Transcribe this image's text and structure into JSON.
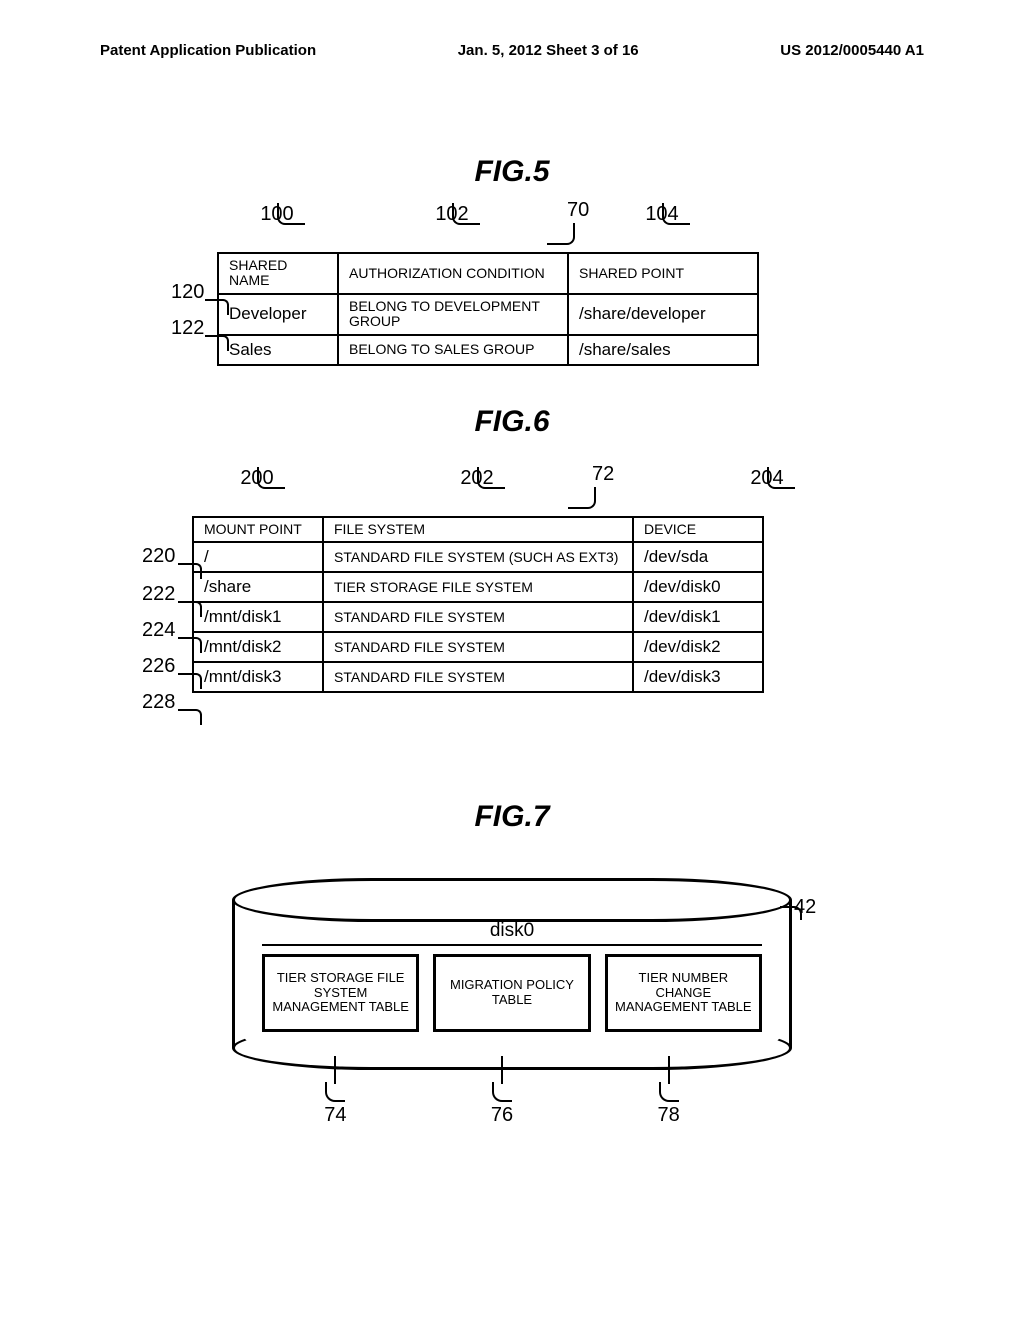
{
  "header": {
    "left": "Patent Application Publication",
    "center": "Jan. 5, 2012   Sheet 3 of 16",
    "right": "US 2012/0005440 A1"
  },
  "fig5": {
    "title": "FIG.5",
    "main_ref": "70",
    "col_refs": [
      "100",
      "102",
      "104"
    ],
    "headers": [
      "SHARED NAME",
      "AUTHORIZATION CONDITION",
      "SHARED POINT"
    ],
    "row_refs": [
      "120",
      "122"
    ],
    "rows": [
      [
        "Developer",
        "BELONG TO DEVELOPMENT GROUP",
        "/share/developer"
      ],
      [
        "Sales",
        "BELONG TO SALES GROUP",
        "/share/sales"
      ]
    ]
  },
  "fig6": {
    "title": "FIG.6",
    "main_ref": "72",
    "col_refs": [
      "200",
      "202",
      "204"
    ],
    "headers": [
      "MOUNT POINT",
      "FILE SYSTEM",
      "DEVICE"
    ],
    "row_refs": [
      "220",
      "222",
      "224",
      "226",
      "228"
    ],
    "rows": [
      [
        "/",
        "STANDARD FILE SYSTEM (SUCH AS EXT3)",
        "/dev/sda"
      ],
      [
        "/share",
        "TIER STORAGE FILE SYSTEM",
        "/dev/disk0"
      ],
      [
        "/mnt/disk1",
        "STANDARD FILE SYSTEM",
        "/dev/disk1"
      ],
      [
        "/mnt/disk2",
        "STANDARD FILE SYSTEM",
        "/dev/disk2"
      ],
      [
        "/mnt/disk3",
        "STANDARD FILE SYSTEM",
        "/dev/disk3"
      ]
    ]
  },
  "fig7": {
    "title": "FIG.7",
    "disk_label": "disk0",
    "cylinder_ref": "42",
    "boxes": [
      "TIER STORAGE FILE SYSTEM MANAGEMENT TABLE",
      "MIGRATION POLICY TABLE",
      "TIER NUMBER CHANGE MANAGEMENT TABLE"
    ],
    "box_refs": [
      "74",
      "76",
      "78"
    ]
  }
}
